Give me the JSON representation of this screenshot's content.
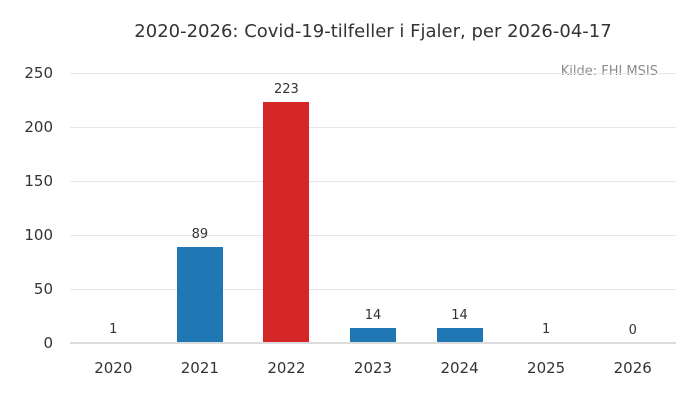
{
  "source": "Kilde: FHI MSIS",
  "colors": {
    "background": "#ffffff",
    "text": "#333333",
    "source_text": "#8c8c8c",
    "grid": "#e6e6e6",
    "axis_line": "#dcdcdc",
    "bar_blue": "#1f77b4",
    "bar_red": "#d62728"
  },
  "chart_data": {
    "type": "bar",
    "title": "2020-2026: Covid-19-tilfeller i Fjaler, per 2026-04-17",
    "source": "Kilde: FHI MSIS",
    "categories": [
      "2020",
      "2021",
      "2022",
      "2023",
      "2024",
      "2025",
      "2026"
    ],
    "values": [
      1,
      89,
      223,
      14,
      14,
      1,
      0
    ],
    "value_labels": [
      "1",
      "89",
      "223",
      "14",
      "14",
      "1",
      "0"
    ],
    "bar_colors": [
      "#1f77b4",
      "#1f77b4",
      "#d62728",
      "#1f77b4",
      "#1f77b4",
      "#1f77b4",
      "#1f77b4"
    ],
    "xlabel": "",
    "ylabel": "",
    "ylim": [
      0,
      250
    ],
    "yticks": [
      0,
      50,
      100,
      150,
      200,
      250
    ],
    "grid": true,
    "legend": false
  }
}
